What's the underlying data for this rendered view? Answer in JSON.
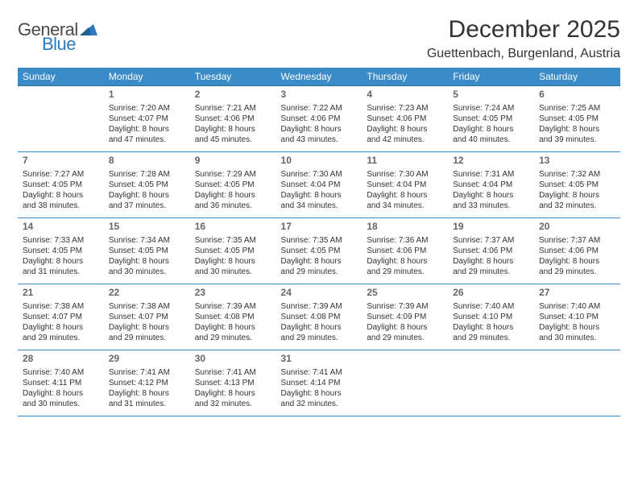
{
  "logo": {
    "word1": "General",
    "word2": "Blue"
  },
  "title": "December 2025",
  "location": "Guettenbach, Burgenland, Austria",
  "header_bg": "#3b8bc9",
  "header_fg": "#ffffff",
  "rule_color": "#3b8bc9",
  "weekdays": [
    "Sunday",
    "Monday",
    "Tuesday",
    "Wednesday",
    "Thursday",
    "Friday",
    "Saturday"
  ],
  "weeks": [
    [
      null,
      {
        "n": "1",
        "sr": "Sunrise: 7:20 AM",
        "ss": "Sunset: 4:07 PM",
        "d1": "Daylight: 8 hours",
        "d2": "and 47 minutes."
      },
      {
        "n": "2",
        "sr": "Sunrise: 7:21 AM",
        "ss": "Sunset: 4:06 PM",
        "d1": "Daylight: 8 hours",
        "d2": "and 45 minutes."
      },
      {
        "n": "3",
        "sr": "Sunrise: 7:22 AM",
        "ss": "Sunset: 4:06 PM",
        "d1": "Daylight: 8 hours",
        "d2": "and 43 minutes."
      },
      {
        "n": "4",
        "sr": "Sunrise: 7:23 AM",
        "ss": "Sunset: 4:06 PM",
        "d1": "Daylight: 8 hours",
        "d2": "and 42 minutes."
      },
      {
        "n": "5",
        "sr": "Sunrise: 7:24 AM",
        "ss": "Sunset: 4:05 PM",
        "d1": "Daylight: 8 hours",
        "d2": "and 40 minutes."
      },
      {
        "n": "6",
        "sr": "Sunrise: 7:25 AM",
        "ss": "Sunset: 4:05 PM",
        "d1": "Daylight: 8 hours",
        "d2": "and 39 minutes."
      }
    ],
    [
      {
        "n": "7",
        "sr": "Sunrise: 7:27 AM",
        "ss": "Sunset: 4:05 PM",
        "d1": "Daylight: 8 hours",
        "d2": "and 38 minutes."
      },
      {
        "n": "8",
        "sr": "Sunrise: 7:28 AM",
        "ss": "Sunset: 4:05 PM",
        "d1": "Daylight: 8 hours",
        "d2": "and 37 minutes."
      },
      {
        "n": "9",
        "sr": "Sunrise: 7:29 AM",
        "ss": "Sunset: 4:05 PM",
        "d1": "Daylight: 8 hours",
        "d2": "and 36 minutes."
      },
      {
        "n": "10",
        "sr": "Sunrise: 7:30 AM",
        "ss": "Sunset: 4:04 PM",
        "d1": "Daylight: 8 hours",
        "d2": "and 34 minutes."
      },
      {
        "n": "11",
        "sr": "Sunrise: 7:30 AM",
        "ss": "Sunset: 4:04 PM",
        "d1": "Daylight: 8 hours",
        "d2": "and 34 minutes."
      },
      {
        "n": "12",
        "sr": "Sunrise: 7:31 AM",
        "ss": "Sunset: 4:04 PM",
        "d1": "Daylight: 8 hours",
        "d2": "and 33 minutes."
      },
      {
        "n": "13",
        "sr": "Sunrise: 7:32 AM",
        "ss": "Sunset: 4:05 PM",
        "d1": "Daylight: 8 hours",
        "d2": "and 32 minutes."
      }
    ],
    [
      {
        "n": "14",
        "sr": "Sunrise: 7:33 AM",
        "ss": "Sunset: 4:05 PM",
        "d1": "Daylight: 8 hours",
        "d2": "and 31 minutes."
      },
      {
        "n": "15",
        "sr": "Sunrise: 7:34 AM",
        "ss": "Sunset: 4:05 PM",
        "d1": "Daylight: 8 hours",
        "d2": "and 30 minutes."
      },
      {
        "n": "16",
        "sr": "Sunrise: 7:35 AM",
        "ss": "Sunset: 4:05 PM",
        "d1": "Daylight: 8 hours",
        "d2": "and 30 minutes."
      },
      {
        "n": "17",
        "sr": "Sunrise: 7:35 AM",
        "ss": "Sunset: 4:05 PM",
        "d1": "Daylight: 8 hours",
        "d2": "and 29 minutes."
      },
      {
        "n": "18",
        "sr": "Sunrise: 7:36 AM",
        "ss": "Sunset: 4:06 PM",
        "d1": "Daylight: 8 hours",
        "d2": "and 29 minutes."
      },
      {
        "n": "19",
        "sr": "Sunrise: 7:37 AM",
        "ss": "Sunset: 4:06 PM",
        "d1": "Daylight: 8 hours",
        "d2": "and 29 minutes."
      },
      {
        "n": "20",
        "sr": "Sunrise: 7:37 AM",
        "ss": "Sunset: 4:06 PM",
        "d1": "Daylight: 8 hours",
        "d2": "and 29 minutes."
      }
    ],
    [
      {
        "n": "21",
        "sr": "Sunrise: 7:38 AM",
        "ss": "Sunset: 4:07 PM",
        "d1": "Daylight: 8 hours",
        "d2": "and 29 minutes."
      },
      {
        "n": "22",
        "sr": "Sunrise: 7:38 AM",
        "ss": "Sunset: 4:07 PM",
        "d1": "Daylight: 8 hours",
        "d2": "and 29 minutes."
      },
      {
        "n": "23",
        "sr": "Sunrise: 7:39 AM",
        "ss": "Sunset: 4:08 PM",
        "d1": "Daylight: 8 hours",
        "d2": "and 29 minutes."
      },
      {
        "n": "24",
        "sr": "Sunrise: 7:39 AM",
        "ss": "Sunset: 4:08 PM",
        "d1": "Daylight: 8 hours",
        "d2": "and 29 minutes."
      },
      {
        "n": "25",
        "sr": "Sunrise: 7:39 AM",
        "ss": "Sunset: 4:09 PM",
        "d1": "Daylight: 8 hours",
        "d2": "and 29 minutes."
      },
      {
        "n": "26",
        "sr": "Sunrise: 7:40 AM",
        "ss": "Sunset: 4:10 PM",
        "d1": "Daylight: 8 hours",
        "d2": "and 29 minutes."
      },
      {
        "n": "27",
        "sr": "Sunrise: 7:40 AM",
        "ss": "Sunset: 4:10 PM",
        "d1": "Daylight: 8 hours",
        "d2": "and 30 minutes."
      }
    ],
    [
      {
        "n": "28",
        "sr": "Sunrise: 7:40 AM",
        "ss": "Sunset: 4:11 PM",
        "d1": "Daylight: 8 hours",
        "d2": "and 30 minutes."
      },
      {
        "n": "29",
        "sr": "Sunrise: 7:41 AM",
        "ss": "Sunset: 4:12 PM",
        "d1": "Daylight: 8 hours",
        "d2": "and 31 minutes."
      },
      {
        "n": "30",
        "sr": "Sunrise: 7:41 AM",
        "ss": "Sunset: 4:13 PM",
        "d1": "Daylight: 8 hours",
        "d2": "and 32 minutes."
      },
      {
        "n": "31",
        "sr": "Sunrise: 7:41 AM",
        "ss": "Sunset: 4:14 PM",
        "d1": "Daylight: 8 hours",
        "d2": "and 32 minutes."
      },
      null,
      null,
      null
    ]
  ]
}
